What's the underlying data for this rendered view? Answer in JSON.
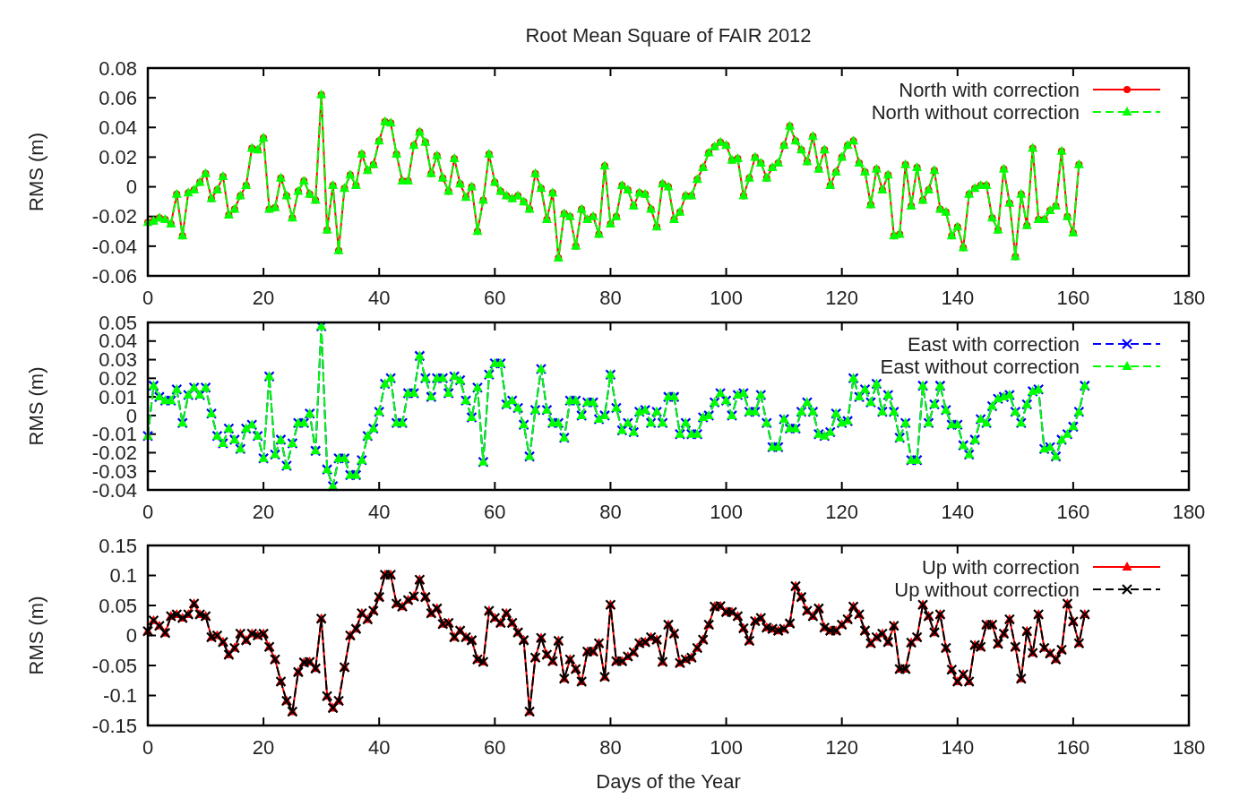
{
  "chart_data": [
    {
      "type": "line",
      "title": "Root Mean Square of FAIR 2012",
      "ylabel": "RMS (m)",
      "xlim": [
        0,
        180
      ],
      "xticks": [
        0,
        20,
        40,
        60,
        80,
        100,
        120,
        140,
        160,
        180
      ],
      "ylim": [
        -0.06,
        0.08
      ],
      "yticks": [
        -0.06,
        -0.04,
        -0.02,
        0,
        0.02,
        0.04,
        0.06,
        0.08
      ],
      "legend": "top right",
      "x": [
        0,
        1,
        2,
        3,
        4,
        5,
        6,
        7,
        8,
        9,
        10,
        11,
        12,
        13,
        14,
        15,
        16,
        17,
        18,
        19,
        20,
        21,
        22,
        23,
        24,
        25,
        26,
        27,
        28,
        29,
        30,
        31,
        32,
        33,
        34,
        35,
        36,
        37,
        38,
        39,
        40,
        41,
        42,
        43,
        44,
        45,
        46,
        47,
        48,
        49,
        50,
        51,
        52,
        53,
        54,
        55,
        56,
        57,
        58,
        59,
        60,
        61,
        62,
        63,
        64,
        65,
        66,
        67,
        68,
        69,
        70,
        71,
        72,
        73,
        74,
        75,
        76,
        77,
        78,
        79,
        80,
        81,
        82,
        83,
        84,
        85,
        86,
        87,
        88,
        89,
        90,
        91,
        92,
        93,
        94,
        95,
        96,
        97,
        98,
        99,
        100,
        101,
        102,
        103,
        104,
        105,
        106,
        107,
        108,
        109,
        110,
        111,
        112,
        113,
        114,
        115,
        116,
        117,
        118,
        119,
        120,
        121,
        122,
        123,
        124,
        125,
        126,
        127,
        128,
        129,
        130,
        131,
        132,
        133,
        134,
        135,
        136,
        137,
        138,
        139,
        140,
        141,
        142,
        143,
        144,
        145,
        146,
        147,
        148,
        149,
        150,
        151,
        152,
        153,
        154,
        155,
        156,
        157,
        158,
        159,
        160,
        161
      ],
      "series": [
        {
          "name": "North with correction",
          "color": "#ff0000",
          "marker": "circle",
          "line_style": "solid",
          "values": [
            -0.024,
            -0.023,
            -0.021,
            -0.022,
            -0.025,
            -0.005,
            -0.033,
            -0.004,
            -0.002,
            0.003,
            0.009,
            -0.008,
            -0.002,
            0.007,
            -0.019,
            -0.015,
            -0.006,
            0.001,
            0.026,
            0.025,
            0.033,
            -0.015,
            -0.014,
            0.006,
            -0.006,
            -0.021,
            -0.003,
            0.004,
            -0.005,
            -0.009,
            0.062,
            -0.029,
            0.001,
            -0.043,
            -0.001,
            0.008,
            0.001,
            0.022,
            0.011,
            0.015,
            0.031,
            0.044,
            0.043,
            0.022,
            0.004,
            0.004,
            0.028,
            0.037,
            0.03,
            0.009,
            0.021,
            0.006,
            -0.003,
            0.019,
            0.002,
            -0.007,
            0.0,
            -0.03,
            -0.009,
            0.022,
            0.003,
            -0.003,
            -0.006,
            -0.008,
            -0.006,
            -0.01,
            -0.015,
            0.009,
            -0.001,
            -0.022,
            -0.004,
            -0.048,
            -0.018,
            -0.02,
            -0.04,
            -0.015,
            -0.022,
            -0.02,
            -0.032,
            0.014,
            -0.025,
            -0.02,
            0.001,
            -0.002,
            -0.013,
            -0.004,
            -0.005,
            -0.015,
            -0.027,
            0.002,
            0.0,
            -0.022,
            -0.017,
            -0.006,
            -0.006,
            0.005,
            0.013,
            0.023,
            0.027,
            0.03,
            0.028,
            0.018,
            0.019,
            -0.006,
            0.006,
            0.02,
            0.016,
            0.006,
            0.013,
            0.016,
            0.028,
            0.041,
            0.031,
            0.025,
            0.017,
            0.034,
            0.012,
            0.025,
            0.001,
            0.01,
            0.02,
            0.028,
            0.031,
            0.016,
            0.01,
            -0.012,
            0.012,
            -0.002,
            0.008,
            -0.033,
            -0.032,
            0.015,
            -0.013,
            0.013,
            -0.009,
            -0.002,
            0.011,
            -0.015,
            -0.017,
            -0.033,
            -0.027,
            -0.041,
            -0.005,
            -0.001,
            0.001,
            0.001,
            -0.021,
            -0.029,
            0.012,
            -0.011,
            -0.047,
            -0.005,
            -0.026,
            0.026,
            -0.022,
            -0.022,
            -0.016,
            -0.013,
            0.024,
            -0.02,
            -0.031,
            0.015
          ]
        },
        {
          "name": "North without correction",
          "color": "#00ff00",
          "marker": "triangle",
          "line_style": "dashed",
          "values": [
            -0.024,
            -0.023,
            -0.021,
            -0.022,
            -0.025,
            -0.005,
            -0.033,
            -0.004,
            -0.002,
            0.003,
            0.009,
            -0.008,
            -0.002,
            0.007,
            -0.019,
            -0.015,
            -0.006,
            0.001,
            0.026,
            0.025,
            0.033,
            -0.015,
            -0.014,
            0.006,
            -0.006,
            -0.021,
            -0.003,
            0.004,
            -0.005,
            -0.009,
            0.062,
            -0.029,
            0.001,
            -0.043,
            -0.001,
            0.008,
            0.001,
            0.022,
            0.011,
            0.015,
            0.031,
            0.044,
            0.043,
            0.022,
            0.004,
            0.004,
            0.028,
            0.037,
            0.03,
            0.009,
            0.021,
            0.006,
            -0.003,
            0.019,
            0.002,
            -0.007,
            0.0,
            -0.03,
            -0.009,
            0.022,
            0.003,
            -0.003,
            -0.006,
            -0.008,
            -0.006,
            -0.01,
            -0.015,
            0.009,
            -0.001,
            -0.022,
            -0.004,
            -0.048,
            -0.018,
            -0.02,
            -0.04,
            -0.015,
            -0.022,
            -0.02,
            -0.032,
            0.014,
            -0.025,
            -0.02,
            0.001,
            -0.002,
            -0.013,
            -0.004,
            -0.005,
            -0.015,
            -0.027,
            0.002,
            0.0,
            -0.022,
            -0.017,
            -0.006,
            -0.006,
            0.005,
            0.013,
            0.023,
            0.027,
            0.03,
            0.028,
            0.018,
            0.019,
            -0.006,
            0.006,
            0.02,
            0.016,
            0.006,
            0.013,
            0.016,
            0.028,
            0.041,
            0.031,
            0.025,
            0.017,
            0.034,
            0.012,
            0.025,
            0.001,
            0.01,
            0.02,
            0.028,
            0.031,
            0.016,
            0.01,
            -0.012,
            0.012,
            -0.002,
            0.008,
            -0.033,
            -0.032,
            0.015,
            -0.013,
            0.013,
            -0.009,
            -0.002,
            0.011,
            -0.015,
            -0.017,
            -0.033,
            -0.027,
            -0.041,
            -0.005,
            -0.001,
            0.001,
            0.001,
            -0.021,
            -0.029,
            0.012,
            -0.011,
            -0.047,
            -0.005,
            -0.026,
            0.026,
            -0.022,
            -0.022,
            -0.016,
            -0.013,
            0.024,
            -0.02,
            -0.031,
            0.015
          ]
        }
      ]
    },
    {
      "type": "line",
      "ylabel": "RMS (m)",
      "xlim": [
        0,
        180
      ],
      "xticks": [
        0,
        20,
        40,
        60,
        80,
        100,
        120,
        140,
        160,
        180
      ],
      "ylim": [
        -0.04,
        0.05
      ],
      "yticks": [
        -0.04,
        -0.03,
        -0.02,
        -0.01,
        0,
        0.01,
        0.02,
        0.03,
        0.04,
        0.05
      ],
      "legend": "top right",
      "x": [
        0,
        1,
        2,
        3,
        4,
        5,
        6,
        7,
        8,
        9,
        10,
        11,
        12,
        13,
        14,
        15,
        16,
        17,
        18,
        19,
        20,
        21,
        22,
        23,
        24,
        25,
        26,
        27,
        28,
        29,
        30,
        31,
        32,
        33,
        34,
        35,
        36,
        37,
        38,
        39,
        40,
        41,
        42,
        43,
        44,
        45,
        46,
        47,
        48,
        49,
        50,
        51,
        52,
        53,
        54,
        55,
        56,
        57,
        58,
        59,
        60,
        61,
        62,
        63,
        64,
        65,
        66,
        67,
        68,
        69,
        70,
        71,
        72,
        73,
        74,
        75,
        76,
        77,
        78,
        79,
        80,
        81,
        82,
        83,
        84,
        85,
        86,
        87,
        88,
        89,
        90,
        91,
        92,
        93,
        94,
        95,
        96,
        97,
        98,
        99,
        100,
        101,
        102,
        103,
        104,
        105,
        106,
        107,
        108,
        109,
        110,
        111,
        112,
        113,
        114,
        115,
        116,
        117,
        118,
        119,
        120,
        121,
        122,
        123,
        124,
        125,
        126,
        127,
        128,
        129,
        130,
        131,
        132,
        133,
        134,
        135,
        136,
        137,
        138,
        139,
        140,
        141,
        142,
        143,
        144,
        145,
        146,
        147,
        148,
        149,
        150,
        151,
        152,
        153,
        154,
        155,
        156,
        157,
        158,
        159,
        160,
        161,
        162
      ],
      "series": [
        {
          "name": "East with correction",
          "color": "#0000ff",
          "marker": "cross",
          "line_style": "dashed",
          "values": [
            -0.011,
            0.016,
            0.01,
            0.008,
            0.008,
            0.014,
            -0.004,
            0.011,
            0.015,
            0.011,
            0.015,
            0.001,
            -0.011,
            -0.015,
            -0.007,
            -0.013,
            -0.018,
            -0.007,
            -0.005,
            -0.011,
            -0.023,
            0.021,
            -0.021,
            -0.013,
            -0.027,
            -0.015,
            -0.004,
            -0.004,
            0.001,
            -0.019,
            0.048,
            -0.029,
            -0.038,
            -0.023,
            -0.023,
            -0.032,
            -0.032,
            -0.024,
            -0.011,
            -0.007,
            0.002,
            0.017,
            0.02,
            -0.004,
            -0.004,
            0.012,
            0.012,
            0.032,
            0.02,
            0.01,
            0.02,
            0.02,
            0.012,
            0.021,
            0.019,
            0.008,
            -0.001,
            0.015,
            -0.025,
            0.022,
            0.028,
            0.028,
            0.006,
            0.008,
            0.004,
            -0.005,
            -0.022,
            0.003,
            0.025,
            0.003,
            -0.004,
            -0.004,
            -0.012,
            0.008,
            0.008,
            0.0,
            0.007,
            0.007,
            -0.002,
            0.0,
            0.022,
            0.004,
            -0.008,
            -0.004,
            -0.009,
            0.002,
            0.003,
            -0.004,
            0.002,
            -0.004,
            0.01,
            0.01,
            -0.01,
            -0.004,
            -0.01,
            -0.01,
            -0.001,
            0.0,
            0.007,
            0.012,
            0.008,
            0.0,
            0.011,
            0.012,
            0.002,
            0.002,
            0.011,
            -0.004,
            -0.017,
            -0.017,
            -0.002,
            -0.007,
            -0.007,
            0.002,
            0.007,
            0.002,
            -0.01,
            -0.011,
            -0.009,
            0.001,
            -0.004,
            -0.003,
            0.02,
            0.01,
            0.014,
            0.007,
            0.017,
            0.002,
            0.011,
            0.002,
            -0.012,
            -0.004,
            -0.024,
            -0.024,
            0.016,
            -0.004,
            0.006,
            0.016,
            0.003,
            -0.005,
            -0.005,
            -0.016,
            -0.021,
            -0.013,
            -0.002,
            -0.004,
            0.005,
            0.009,
            0.01,
            0.011,
            0.002,
            -0.004,
            0.006,
            0.013,
            0.014,
            -0.018,
            -0.017,
            -0.022,
            -0.013,
            -0.01,
            -0.006,
            0.002,
            0.016
          ]
        },
        {
          "name": "East without correction",
          "color": "#00ff00",
          "marker": "triangle",
          "line_style": "dashed",
          "values": [
            -0.011,
            0.016,
            0.01,
            0.008,
            0.008,
            0.014,
            -0.004,
            0.011,
            0.015,
            0.011,
            0.015,
            0.001,
            -0.011,
            -0.015,
            -0.007,
            -0.013,
            -0.018,
            -0.007,
            -0.005,
            -0.011,
            -0.023,
            0.021,
            -0.021,
            -0.013,
            -0.027,
            -0.015,
            -0.004,
            -0.004,
            0.001,
            -0.019,
            0.048,
            -0.029,
            -0.038,
            -0.023,
            -0.023,
            -0.032,
            -0.032,
            -0.024,
            -0.011,
            -0.007,
            0.002,
            0.017,
            0.02,
            -0.004,
            -0.004,
            0.012,
            0.012,
            0.032,
            0.02,
            0.01,
            0.02,
            0.02,
            0.012,
            0.021,
            0.019,
            0.008,
            -0.001,
            0.015,
            -0.025,
            0.022,
            0.028,
            0.028,
            0.006,
            0.008,
            0.004,
            -0.005,
            -0.022,
            0.003,
            0.025,
            0.003,
            -0.004,
            -0.004,
            -0.012,
            0.008,
            0.008,
            0.0,
            0.007,
            0.007,
            -0.002,
            0.0,
            0.022,
            0.004,
            -0.008,
            -0.004,
            -0.009,
            0.002,
            0.003,
            -0.004,
            0.002,
            -0.004,
            0.01,
            0.01,
            -0.01,
            -0.004,
            -0.01,
            -0.01,
            -0.001,
            0.0,
            0.007,
            0.012,
            0.008,
            0.0,
            0.011,
            0.012,
            0.002,
            0.002,
            0.011,
            -0.004,
            -0.017,
            -0.017,
            -0.002,
            -0.007,
            -0.007,
            0.002,
            0.007,
            0.002,
            -0.01,
            -0.011,
            -0.009,
            0.001,
            -0.004,
            -0.003,
            0.02,
            0.01,
            0.014,
            0.007,
            0.017,
            0.002,
            0.011,
            0.002,
            -0.012,
            -0.004,
            -0.024,
            -0.024,
            0.016,
            -0.004,
            0.006,
            0.016,
            0.003,
            -0.005,
            -0.005,
            -0.016,
            -0.021,
            -0.013,
            -0.002,
            -0.004,
            0.005,
            0.009,
            0.01,
            0.011,
            0.002,
            -0.004,
            0.006,
            0.013,
            0.014,
            -0.018,
            -0.017,
            -0.022,
            -0.013,
            -0.01,
            -0.006,
            0.002,
            0.016
          ]
        }
      ]
    },
    {
      "type": "line",
      "ylabel": "RMS (m)",
      "xlabel": "Days of the Year",
      "xlim": [
        0,
        180
      ],
      "xticks": [
        0,
        20,
        40,
        60,
        80,
        100,
        120,
        140,
        160,
        180
      ],
      "ylim": [
        -0.15,
        0.15
      ],
      "yticks": [
        -0.15,
        -0.1,
        -0.05,
        0,
        0.05,
        0.1,
        0.15
      ],
      "legend": "top right",
      "x": [
        0,
        1,
        2,
        3,
        4,
        5,
        6,
        7,
        8,
        9,
        10,
        11,
        12,
        13,
        14,
        15,
        16,
        17,
        18,
        19,
        20,
        21,
        22,
        23,
        24,
        25,
        26,
        27,
        28,
        29,
        30,
        31,
        32,
        33,
        34,
        35,
        36,
        37,
        38,
        39,
        40,
        41,
        42,
        43,
        44,
        45,
        46,
        47,
        48,
        49,
        50,
        51,
        52,
        53,
        54,
        55,
        56,
        57,
        58,
        59,
        60,
        61,
        62,
        63,
        64,
        65,
        66,
        67,
        68,
        69,
        70,
        71,
        72,
        73,
        74,
        75,
        76,
        77,
        78,
        79,
        80,
        81,
        82,
        83,
        84,
        85,
        86,
        87,
        88,
        89,
        90,
        91,
        92,
        93,
        94,
        95,
        96,
        97,
        98,
        99,
        100,
        101,
        102,
        103,
        104,
        105,
        106,
        107,
        108,
        109,
        110,
        111,
        112,
        113,
        114,
        115,
        116,
        117,
        118,
        119,
        120,
        121,
        122,
        123,
        124,
        125,
        126,
        127,
        128,
        129,
        130,
        131,
        132,
        133,
        134,
        135,
        136,
        137,
        138,
        139,
        140,
        141,
        142,
        143,
        144,
        145,
        146,
        147,
        148,
        149,
        150,
        151,
        152,
        153,
        154,
        155,
        156,
        157,
        158,
        159,
        160,
        161,
        162
      ],
      "series": [
        {
          "name": "Up with correction",
          "color": "#ff0000",
          "marker": "triangle",
          "line_style": "solid",
          "values": [
            0.007,
            0.025,
            0.016,
            0.004,
            0.032,
            0.035,
            0.029,
            0.035,
            0.053,
            0.035,
            0.032,
            -0.003,
            0.0,
            -0.011,
            -0.032,
            -0.021,
            0.003,
            -0.008,
            0.003,
            0.0,
            0.003,
            -0.019,
            -0.04,
            -0.077,
            -0.109,
            -0.127,
            -0.061,
            -0.045,
            -0.044,
            -0.055,
            0.028,
            -0.101,
            -0.121,
            -0.109,
            -0.053,
            0.0,
            0.011,
            0.037,
            0.027,
            0.041,
            0.064,
            0.101,
            0.101,
            0.053,
            0.048,
            0.059,
            0.065,
            0.093,
            0.064,
            0.037,
            0.045,
            0.019,
            0.021,
            -0.003,
            0.008,
            -0.003,
            -0.008,
            -0.04,
            -0.044,
            0.041,
            0.029,
            0.021,
            0.037,
            0.021,
            0.005,
            -0.008,
            -0.127,
            -0.037,
            -0.004,
            -0.032,
            -0.043,
            -0.009,
            -0.072,
            -0.04,
            -0.056,
            -0.077,
            -0.027,
            -0.027,
            -0.013,
            -0.069,
            0.051,
            -0.043,
            -0.043,
            -0.035,
            -0.028,
            -0.013,
            -0.011,
            -0.003,
            -0.007,
            -0.044,
            0.018,
            0.003,
            -0.046,
            -0.04,
            -0.037,
            -0.021,
            -0.007,
            0.018,
            0.048,
            0.049,
            0.039,
            0.039,
            0.032,
            0.012,
            -0.009,
            0.024,
            0.029,
            0.013,
            0.011,
            0.008,
            0.011,
            0.02,
            0.082,
            0.064,
            0.041,
            0.032,
            0.045,
            0.013,
            0.008,
            0.008,
            0.018,
            0.027,
            0.048,
            0.035,
            0.008,
            -0.013,
            -0.003,
            0.003,
            -0.011,
            0.016,
            -0.056,
            -0.056,
            -0.012,
            -0.003,
            0.051,
            0.032,
            0.005,
            0.035,
            -0.021,
            -0.057,
            -0.077,
            -0.065,
            -0.077,
            -0.016,
            -0.019,
            0.018,
            0.018,
            -0.014,
            0.003,
            0.027,
            -0.019,
            -0.072,
            0.007,
            -0.029,
            0.035,
            -0.021,
            -0.03,
            -0.04,
            -0.024,
            0.053,
            0.023,
            -0.013,
            0.035
          ]
        },
        {
          "name": "Up without correction",
          "color": "#000000",
          "marker": "cross",
          "line_style": "dashed",
          "values": [
            0.007,
            0.025,
            0.016,
            0.004,
            0.032,
            0.035,
            0.029,
            0.035,
            0.053,
            0.035,
            0.032,
            -0.003,
            0.0,
            -0.011,
            -0.032,
            -0.021,
            0.003,
            -0.008,
            0.003,
            0.0,
            0.003,
            -0.019,
            -0.04,
            -0.077,
            -0.109,
            -0.127,
            -0.061,
            -0.045,
            -0.044,
            -0.055,
            0.028,
            -0.101,
            -0.121,
            -0.109,
            -0.053,
            0.0,
            0.011,
            0.037,
            0.027,
            0.041,
            0.064,
            0.101,
            0.101,
            0.053,
            0.048,
            0.059,
            0.065,
            0.093,
            0.064,
            0.037,
            0.045,
            0.019,
            0.021,
            -0.003,
            0.008,
            -0.003,
            -0.008,
            -0.04,
            -0.044,
            0.041,
            0.029,
            0.021,
            0.037,
            0.021,
            0.005,
            -0.008,
            -0.127,
            -0.037,
            -0.004,
            -0.032,
            -0.043,
            -0.009,
            -0.072,
            -0.04,
            -0.056,
            -0.077,
            -0.027,
            -0.027,
            -0.013,
            -0.069,
            0.051,
            -0.043,
            -0.043,
            -0.035,
            -0.028,
            -0.013,
            -0.011,
            -0.003,
            -0.007,
            -0.044,
            0.018,
            0.003,
            -0.046,
            -0.04,
            -0.037,
            -0.021,
            -0.007,
            0.018,
            0.048,
            0.049,
            0.039,
            0.039,
            0.032,
            0.012,
            -0.009,
            0.024,
            0.029,
            0.013,
            0.011,
            0.008,
            0.011,
            0.02,
            0.082,
            0.064,
            0.041,
            0.032,
            0.045,
            0.013,
            0.008,
            0.008,
            0.018,
            0.027,
            0.048,
            0.035,
            0.008,
            -0.013,
            -0.003,
            0.003,
            -0.011,
            0.016,
            -0.056,
            -0.056,
            -0.012,
            -0.003,
            0.051,
            0.032,
            0.005,
            0.035,
            -0.021,
            -0.057,
            -0.077,
            -0.065,
            -0.077,
            -0.016,
            -0.019,
            0.018,
            0.018,
            -0.014,
            0.003,
            0.027,
            -0.019,
            -0.072,
            0.007,
            -0.029,
            0.035,
            -0.021,
            -0.03,
            -0.04,
            -0.024,
            0.053,
            0.023,
            -0.013,
            0.035
          ]
        }
      ]
    }
  ]
}
